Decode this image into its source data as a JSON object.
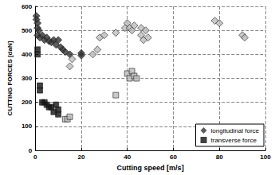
{
  "chart_data": {
    "type": "scatter",
    "x_label": "Cutting speed [m/s]",
    "y_label": "CUTTING FORCES [daN]",
    "xlim": [
      0,
      100
    ],
    "xticks": [
      0,
      20,
      40,
      60,
      80,
      100
    ],
    "ylim": [
      0,
      600
    ],
    "yticks": [
      0,
      100,
      200,
      300,
      400,
      500,
      600
    ],
    "grid": true,
    "legend": "lower right",
    "series": [
      {
        "name": "longitudinal force",
        "marker": "diamond",
        "color": "#333333",
        "x": [
          0.5,
          0.5,
          1,
          1,
          1.5,
          1,
          2,
          3,
          4,
          5,
          6,
          7,
          8,
          9,
          10,
          11,
          12,
          13,
          15,
          20,
          20,
          15,
          16,
          25,
          27,
          28,
          30,
          35,
          39,
          40,
          41,
          42,
          43,
          46,
          46,
          47,
          48,
          49,
          78,
          80,
          90,
          91
        ],
        "values": [
          560,
          545,
          530,
          510,
          500,
          480,
          470,
          480,
          460,
          470,
          455,
          450,
          460,
          440,
          460,
          430,
          420,
          410,
          400,
          405,
          395,
          350,
          380,
          400,
          420,
          470,
          480,
          490,
          510,
          530,
          510,
          500,
          520,
          510,
          480,
          460,
          500,
          470,
          540,
          530,
          480,
          470
        ],
        "colors": [
          "#333333",
          "#333333",
          "#333333",
          "#333333",
          "#333333",
          "#333333",
          "#333333",
          "#333333",
          "#333333",
          "#333333",
          "#333333",
          "#333333",
          "#333333",
          "#333333",
          "#333333",
          "#333333",
          "#333333",
          "#333333",
          "#333333",
          "#333333",
          "#333333",
          "#bbbbbb",
          "#bbbbbb",
          "#bbbbbb",
          "#bbbbbb",
          "#bbbbbb",
          "#bbbbbb",
          "#bbbbbb",
          "#bbbbbb",
          "#bbbbbb",
          "#bbbbbb",
          "#bbbbbb",
          "#bbbbbb",
          "#bbbbbb",
          "#bbbbbb",
          "#bbbbbb",
          "#bbbbbb",
          "#bbbbbb",
          "#bbbbbb",
          "#bbbbbb",
          "#bbbbbb",
          "#bbbbbb"
        ]
      },
      {
        "name": "transverse force",
        "marker": "square",
        "color": "#111111",
        "x": [
          1,
          1,
          2,
          2,
          3,
          4,
          5,
          6,
          7,
          8,
          9,
          10,
          10,
          13,
          14,
          15,
          35,
          40,
          41,
          42,
          43,
          44
        ],
        "values": [
          420,
          400,
          270,
          250,
          200,
          200,
          190,
          180,
          180,
          160,
          190,
          170,
          150,
          130,
          130,
          140,
          230,
          320,
          300,
          330,
          310,
          300
        ],
        "colors": [
          "#111111",
          "#111111",
          "#111111",
          "#111111",
          "#111111",
          "#111111",
          "#111111",
          "#111111",
          "#111111",
          "#111111",
          "#111111",
          "#111111",
          "#111111",
          "#bbbbbb",
          "#bbbbbb",
          "#bbbbbb",
          "#bbbbbb",
          "#bbbbbb",
          "#bbbbbb",
          "#bbbbbb",
          "#bbbbbb",
          "#bbbbbb"
        ]
      }
    ]
  }
}
